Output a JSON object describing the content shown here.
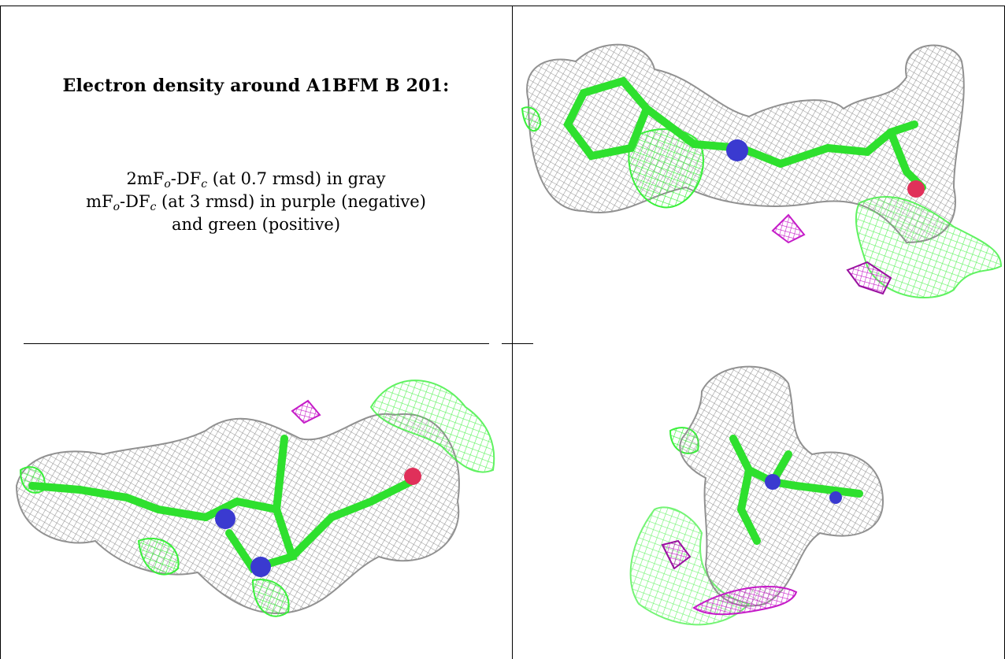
{
  "title": "Electron density around A1BFM B 201:",
  "legend": {
    "line1": {
      "pre": "2mF",
      "s1": "o",
      "mid": "-DF",
      "s2": "c",
      "post": " (at 0.7 rmsd) in gray"
    },
    "line2": {
      "pre": "mF",
      "s1": "o",
      "mid": "-DF",
      "s2": "c",
      "post": " (at 3 rmsd) in purple (negative)"
    },
    "line3": "and green (positive)"
  },
  "colors": {
    "mesh_gray": "#8c8c8c",
    "mesh_green": "#39f03a",
    "mesh_purple": "#c51cc8",
    "atom_blue": "#3a3ad0",
    "atom_red": "#e0305a",
    "border": "#000000"
  },
  "views": [
    {
      "name": "density-view-1"
    },
    {
      "name": "density-view-2"
    },
    {
      "name": "density-view-3"
    }
  ]
}
